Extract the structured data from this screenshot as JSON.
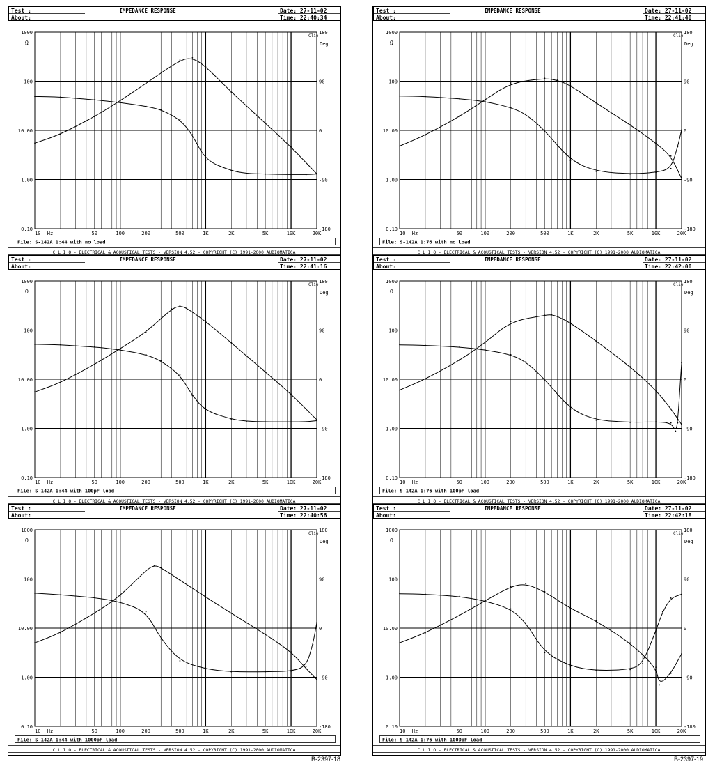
{
  "pages": [
    {
      "footer_id": "B-2397-18",
      "panels": [
        {
          "title": "IMPEDANCE RESPONSE",
          "test_label": "Test :",
          "about_label": "About:",
          "date": "Date: 27-11-02",
          "time": "Time: 22:40:34",
          "file": "File: S-142A 1:44 with no load"
        },
        {
          "title": "IMPEDANCE RESPONSE",
          "test_label": "Test :",
          "about_label": "About:",
          "date": "Date: 27-11-02",
          "time": "Time: 22:41:16",
          "file": "File: S-142A 1:44 with 100pF load"
        },
        {
          "title": "IMPEDANCE RESPONSE",
          "test_label": "Test :",
          "about_label": "About:",
          "date": "Date: 27-11-02",
          "time": "Time: 22:40:56",
          "file": "File: S-142A 1:44 with 1000pF load"
        }
      ]
    },
    {
      "footer_id": "B-2397-19",
      "panels": [
        {
          "title": "IMPEDANCE RESPONSE",
          "test_label": "Test :",
          "about_label": "About:",
          "date": "Date: 27-11-02",
          "time": "Time: 22:41:40",
          "file": "File: S-142A 1:76 with no load"
        },
        {
          "title": "IMPEDANCE RESPONSE",
          "test_label": "Test :",
          "about_label": "About:",
          "date": "Date: 27-11-02",
          "time": "Time: 22:42:00",
          "file": "File: S-142A 1:76 with 100pF load"
        },
        {
          "title": "IMPEDANCE RESPONSE",
          "test_label": "Test :",
          "about_label": "About:",
          "date": "Date: 27-11-02",
          "time": "Time: 22:42:18",
          "file": "File: S-142A 1:76 with 1000pF load"
        }
      ]
    }
  ],
  "bottom_bar": "C L I O   -   ELECTRICAL & ACOUSTICAL TESTS   -   VERSION 4.52   -   COPYRIGHT (C) 1991-2000 AUDIOMATICA",
  "axes": {
    "y_ticks": [
      "1000",
      "100",
      "10.00",
      "1.00",
      "0.10"
    ],
    "y_unit": "Ω",
    "y2_ticks": [
      "180",
      "90",
      "0",
      "-90",
      "-180"
    ],
    "y2_unit": "Deg",
    "clio_mark": "Clio",
    "x_ticks": [
      "10",
      "Hz",
      "50",
      "100",
      "200",
      "500",
      "1K",
      "2K",
      "5K",
      "10K",
      "20K"
    ]
  },
  "chart_data": [
    {
      "type": "line",
      "x_scale": "log",
      "y_scale": "log",
      "xlim": [
        10,
        20000
      ],
      "ylim": [
        0.1,
        1000
      ],
      "y2lim": [
        -180,
        180
      ],
      "series": [
        {
          "axis": "left",
          "x": [
            10,
            20,
            50,
            100,
            200,
            500,
            700,
            1000,
            2000,
            5000,
            10000,
            20000
          ],
          "values": [
            5.5,
            8.3,
            19,
            40,
            90,
            270,
            300,
            200,
            60,
            14,
            4.6,
            1.3
          ]
        },
        {
          "axis": "right",
          "x": [
            10,
            20,
            50,
            100,
            200,
            300,
            500,
            700,
            1000,
            2000,
            3000,
            5000,
            10000,
            15000,
            20000
          ],
          "values": [
            62,
            61,
            56,
            51,
            44,
            38,
            20,
            -8,
            -55,
            -74,
            -79,
            -80,
            -81,
            -81,
            -80
          ]
        }
      ]
    },
    {
      "type": "line",
      "x_scale": "log",
      "y_scale": "log",
      "xlim": [
        10,
        20000
      ],
      "ylim": [
        0.1,
        1000
      ],
      "y2lim": [
        -180,
        180
      ],
      "series": [
        {
          "axis": "left",
          "x": [
            10,
            20,
            50,
            100,
            200,
            400,
            500,
            600,
            1000,
            2000,
            5000,
            10000,
            20000
          ],
          "values": [
            5.5,
            8.5,
            20,
            42,
            90,
            270,
            310,
            280,
            150,
            55,
            14,
            5,
            1.5
          ]
        },
        {
          "axis": "right",
          "x": [
            10,
            20,
            50,
            100,
            200,
            300,
            500,
            700,
            1000,
            2000,
            3000,
            5000,
            10000,
            15000,
            20000
          ],
          "values": [
            64,
            63,
            59,
            54,
            45,
            34,
            8,
            -30,
            -58,
            -73,
            -77,
            -78,
            -78,
            -78,
            -76
          ]
        }
      ]
    },
    {
      "type": "line",
      "x_scale": "log",
      "y_scale": "log",
      "xlim": [
        10,
        20000
      ],
      "ylim": [
        0.1,
        1000
      ],
      "y2lim": [
        -180,
        180
      ],
      "series": [
        {
          "axis": "left",
          "x": [
            10,
            20,
            50,
            100,
            200,
            250,
            300,
            500,
            1000,
            2000,
            5000,
            10000,
            15000,
            20000
          ],
          "values": [
            5,
            8,
            20,
            45,
            150,
            190,
            170,
            95,
            43,
            20,
            7.5,
            3.3,
            1.5,
            0.9
          ]
        },
        {
          "axis": "right",
          "x": [
            10,
            20,
            50,
            100,
            200,
            300,
            500,
            1000,
            2000,
            5000,
            10000,
            15000,
            18000,
            20000
          ],
          "values": [
            64,
            61,
            56,
            48,
            30,
            -20,
            -60,
            -75,
            -80,
            -80,
            -79,
            -70,
            -30,
            10
          ]
        }
      ]
    },
    {
      "type": "line",
      "x_scale": "log",
      "y_scale": "log",
      "xlim": [
        10,
        20000
      ],
      "ylim": [
        0.1,
        1000
      ],
      "y2lim": [
        -180,
        180
      ],
      "series": [
        {
          "axis": "left",
          "x": [
            10,
            20,
            50,
            100,
            200,
            500,
            700,
            1000,
            2000,
            5000,
            10000,
            15000,
            20000
          ],
          "values": [
            4.8,
            8,
            19,
            42,
            92,
            115,
            105,
            82,
            36,
            13,
            5.5,
            3,
            1.05
          ]
        },
        {
          "axis": "right",
          "x": [
            10,
            20,
            50,
            100,
            200,
            300,
            500,
            1000,
            2000,
            5000,
            10000,
            15000,
            18000,
            20000
          ],
          "values": [
            63,
            62,
            58,
            53,
            42,
            30,
            0,
            -55,
            -75,
            -80,
            -77,
            -70,
            -30,
            1
          ]
        }
      ]
    },
    {
      "type": "line",
      "x_scale": "log",
      "y_scale": "log",
      "xlim": [
        10,
        20000
      ],
      "ylim": [
        0.1,
        1000
      ],
      "y2lim": [
        -180,
        180
      ],
      "series": [
        {
          "axis": "left",
          "x": [
            10,
            20,
            50,
            100,
            200,
            500,
            600,
            700,
            1000,
            2000,
            5000,
            10000,
            15000,
            20000
          ],
          "values": [
            6,
            10,
            24,
            55,
            150,
            200,
            205,
            190,
            140,
            60,
            18,
            6,
            2.5,
            1.2
          ]
        },
        {
          "axis": "right",
          "x": [
            10,
            20,
            50,
            100,
            200,
            300,
            500,
            1000,
            2000,
            5000,
            10000,
            15000,
            17000,
            18000,
            20000
          ],
          "values": [
            63,
            62,
            59,
            54,
            45,
            32,
            0,
            -55,
            -75,
            -79,
            -78,
            -80,
            -95,
            -80,
            30
          ]
        }
      ]
    },
    {
      "type": "line",
      "x_scale": "log",
      "y_scale": "log",
      "xlim": [
        10,
        20000
      ],
      "ylim": [
        0.1,
        1000
      ],
      "y2lim": [
        -180,
        180
      ],
      "series": [
        {
          "axis": "left",
          "x": [
            10,
            20,
            50,
            100,
            200,
            300,
            500,
            1000,
            2000,
            5000,
            10000,
            11000,
            15000,
            20000
          ],
          "values": [
            5,
            8,
            18,
            36,
            70,
            80,
            55,
            25,
            14,
            5,
            1.6,
            0.7,
            1.2,
            3
          ]
        },
        {
          "axis": "right",
          "x": [
            10,
            20,
            50,
            100,
            200,
            300,
            500,
            1000,
            2000,
            5000,
            7000,
            10000,
            12000,
            15000,
            20000
          ],
          "values": [
            63,
            62,
            58,
            50,
            35,
            10,
            -45,
            -70,
            -78,
            -76,
            -65,
            -5,
            30,
            55,
            62
          ]
        }
      ]
    }
  ]
}
